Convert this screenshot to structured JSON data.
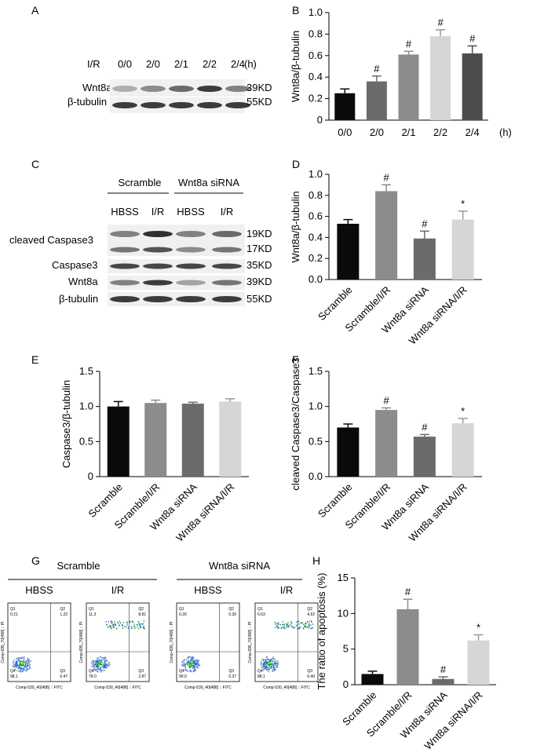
{
  "panels": {
    "A": {
      "label": "A",
      "header_label": "I/R",
      "lanes": [
        "0/0",
        "2/0",
        "2/1",
        "2/2",
        "2/4"
      ],
      "unit": "(h)",
      "rows": [
        {
          "name": "Wnt8a",
          "kd": "39KD",
          "intensity": [
            0.35,
            0.5,
            0.65,
            0.85,
            0.55
          ]
        },
        {
          "name": "β-tubulin",
          "kd": "55KD",
          "intensity": [
            0.85,
            0.85,
            0.85,
            0.85,
            0.85
          ]
        }
      ]
    },
    "C": {
      "label": "C",
      "groups": [
        "Scramble",
        "Wnt8a siRNA"
      ],
      "lanes": [
        "HBSS",
        "I/R",
        "HBSS",
        "I/R"
      ],
      "cleaved_label": "cleaved Caspase3",
      "cleaved_kd": [
        "19KD",
        "17KD"
      ],
      "rows": [
        {
          "name": "Caspase3",
          "kd": "35KD"
        },
        {
          "name": "Wnt8a",
          "kd": "39KD"
        },
        {
          "name": "β-tubulin",
          "kd": "55KD"
        }
      ]
    },
    "G": {
      "label": "G",
      "groups": [
        "Scramble",
        "Wnt8a siRNA"
      ],
      "plots": [
        {
          "title": "HBSS",
          "q1": "0.21",
          "q2": "1.22",
          "q3": "0.47",
          "q4": "98.1"
        },
        {
          "title": "I/R",
          "q1": "11.3",
          "q2": "8.81",
          "q3": "2.87",
          "q4": "78.0"
        },
        {
          "title": "HBSS",
          "q1": "0.26",
          "q2": "0.30",
          "q3": "0.37",
          "q4": "99.0"
        },
        {
          "title": "I/R",
          "q1": "6.63",
          "q2": "4.92",
          "q3": "0.40",
          "q4": "88.1"
        }
      ],
      "quadrant_names": [
        "Q1",
        "Q2",
        "Q3",
        "Q4"
      ],
      "xlabel": "Comp-530_40[488] :: FITC",
      "ylabel": "Comp-695_70[488] :: PI"
    }
  },
  "chart_data": [
    {
      "panel": "B",
      "type": "bar",
      "categories": [
        "0/0",
        "2/0",
        "2/1",
        "2/2",
        "2/4"
      ],
      "values": [
        0.25,
        0.36,
        0.61,
        0.78,
        0.62
      ],
      "errors": [
        0.04,
        0.05,
        0.03,
        0.06,
        0.07
      ],
      "marks": [
        "",
        "#",
        "#",
        "#",
        "#"
      ],
      "colors": [
        "#0a0a0a",
        "#6b6b6b",
        "#8c8c8c",
        "#d6d6d6",
        "#4d4d4d"
      ],
      "ylabel": "Wnt8a/β-tubulin",
      "ylim": [
        0,
        1.0
      ],
      "yticks": [
        "0",
        "0.2",
        "0.4",
        "0.6",
        "0.8",
        "1.0"
      ],
      "xunit": "(h)"
    },
    {
      "panel": "D",
      "type": "bar",
      "categories": [
        "Scramble",
        "Scramble/I/R",
        "Wnt8a siRNA",
        "Wnt8a siRNA/I/R"
      ],
      "values": [
        0.53,
        0.84,
        0.39,
        0.57
      ],
      "errors": [
        0.04,
        0.06,
        0.07,
        0.08
      ],
      "marks": [
        "",
        "#",
        "#",
        "*"
      ],
      "colors": [
        "#0a0a0a",
        "#8c8c8c",
        "#6b6b6b",
        "#d6d6d6"
      ],
      "ylabel": "Wnt8a/β-tubulin",
      "ylim": [
        0,
        1.0
      ],
      "yticks": [
        "0.0",
        "0.2",
        "0.4",
        "0.6",
        "0.8",
        "1.0"
      ]
    },
    {
      "panel": "E",
      "type": "bar",
      "categories": [
        "Scramble",
        "Scramble/I/R",
        "Wnt8a siRNA",
        "Wnt8a siRNA/I/R"
      ],
      "values": [
        1.0,
        1.05,
        1.04,
        1.07
      ],
      "errors": [
        0.07,
        0.04,
        0.02,
        0.04
      ],
      "marks": [
        "",
        "",
        "",
        ""
      ],
      "colors": [
        "#0a0a0a",
        "#8c8c8c",
        "#6b6b6b",
        "#d6d6d6"
      ],
      "ylabel": "Caspase3/β-tubulin",
      "ylim": [
        0,
        1.5
      ],
      "yticks": [
        "0",
        "0.5",
        "1.0",
        "1.5"
      ]
    },
    {
      "panel": "F",
      "type": "bar",
      "categories": [
        "Scramble",
        "Scramble/I/R",
        "Wnt8a siRNA",
        "Wnt8a siRNA/I/R"
      ],
      "values": [
        0.7,
        0.95,
        0.57,
        0.76
      ],
      "errors": [
        0.05,
        0.03,
        0.03,
        0.07
      ],
      "marks": [
        "",
        "#",
        "#",
        "*"
      ],
      "colors": [
        "#0a0a0a",
        "#8c8c8c",
        "#6b6b6b",
        "#d6d6d6"
      ],
      "ylabel": "cleaved Caspase3/Caspase3",
      "ylim": [
        0,
        1.5
      ],
      "yticks": [
        "0.0",
        "0.5",
        "1.0",
        "1.5"
      ]
    },
    {
      "panel": "H",
      "type": "bar",
      "categories": [
        "Scramble",
        "Scramble/I/R",
        "Wnt8a siRNA",
        "Wnt8a siRNA/I/R"
      ],
      "values": [
        1.5,
        10.6,
        0.8,
        6.2
      ],
      "errors": [
        0.4,
        1.4,
        0.3,
        0.8
      ],
      "marks": [
        "",
        "#",
        "#",
        "*"
      ],
      "colors": [
        "#0a0a0a",
        "#8c8c8c",
        "#6b6b6b",
        "#d6d6d6"
      ],
      "ylabel": "The ratio of apoptosis (%)",
      "ylim": [
        0,
        15
      ],
      "yticks": [
        "0",
        "5",
        "10",
        "15"
      ]
    }
  ]
}
